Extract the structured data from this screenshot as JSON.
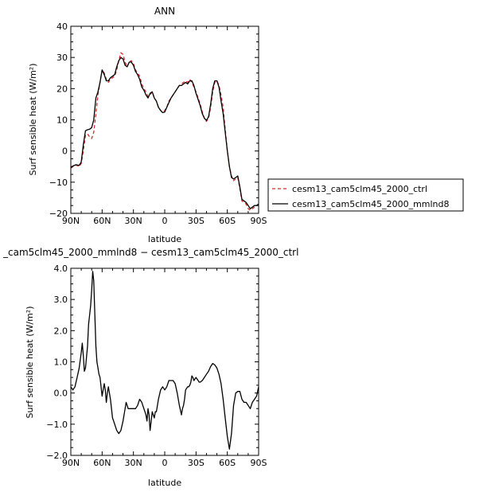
{
  "chart_data": [
    {
      "type": "line",
      "title": "ANN",
      "xlabel": "latitude",
      "ylabel": "Surf sensible heat (W/m²)",
      "xlim": [
        90,
        -90
      ],
      "ylim": [
        -20,
        40
      ],
      "xticks": [
        90,
        60,
        30,
        0,
        -30,
        -60,
        -90
      ],
      "xtick_labels": [
        "90N",
        "60N",
        "30N",
        "0",
        "30S",
        "60S",
        "90S"
      ],
      "yticks": [
        -20,
        -10,
        0,
        10,
        20,
        30,
        40
      ],
      "ytick_labels": [
        "−20",
        "−10",
        "0",
        "10",
        "20",
        "30",
        "40"
      ],
      "legend": {
        "placement": "right",
        "entries": [
          "cesm13_cam5clm45_2000_ctrl",
          "cesm13_cam5clm45_2000_mmlnd8"
        ]
      },
      "series": [
        {
          "name": "cesm13_cam5clm45_2000_ctrl",
          "color": "#d62728",
          "style": "dashed",
          "x": [
            90,
            88,
            85,
            82,
            80,
            78,
            76,
            74,
            72,
            70,
            68,
            66,
            64,
            62,
            60,
            58,
            56,
            54,
            52,
            50,
            48,
            46,
            44,
            42,
            40,
            38,
            36,
            34,
            32,
            30,
            28,
            26,
            24,
            22,
            20,
            18,
            16,
            14,
            12,
            10,
            8,
            6,
            4,
            2,
            0,
            -2,
            -4,
            -6,
            -8,
            -10,
            -12,
            -14,
            -16,
            -18,
            -20,
            -22,
            -24,
            -26,
            -28,
            -30,
            -32,
            -34,
            -36,
            -38,
            -40,
            -42,
            -44,
            -46,
            -48,
            -50,
            -52,
            -54,
            -56,
            -58,
            -60,
            -62,
            -64,
            -66,
            -68,
            -70,
            -72,
            -74,
            -76,
            -78,
            -80,
            -82,
            -84,
            -86,
            -88,
            -90
          ],
          "y": [
            -5.5,
            -5,
            -4.5,
            -5,
            -4,
            0,
            5,
            5.5,
            4.5,
            4,
            6,
            12,
            18,
            22,
            26,
            25,
            23,
            22,
            23,
            23.5,
            24,
            26,
            29,
            31.5,
            31,
            28.5,
            27,
            28.5,
            29,
            28,
            26,
            25,
            24,
            21.5,
            20,
            19,
            17.5,
            18,
            19,
            17,
            16,
            14,
            13,
            12.5,
            13,
            14,
            16,
            17,
            18,
            19,
            20,
            21,
            21.5,
            22,
            22.5,
            22,
            23,
            22,
            20.5,
            19,
            17,
            15,
            12.5,
            10.5,
            9.5,
            10.5,
            14,
            19,
            22,
            22.5,
            21,
            18,
            14,
            7,
            0,
            -5,
            -8,
            -9.5,
            -9,
            -8.5,
            -12,
            -16,
            -16.5,
            -17,
            -18.5,
            -19,
            -18.5,
            -18,
            -17.5,
            -17
          ]
        },
        {
          "name": "cesm13_cam5clm45_2000_mmlnd8",
          "color": "#000000",
          "style": "solid",
          "x": [
            90,
            88,
            85,
            82,
            80,
            78,
            76,
            74,
            72,
            70,
            68,
            66,
            64,
            62,
            60,
            58,
            56,
            54,
            52,
            50,
            48,
            46,
            44,
            42,
            40,
            38,
            36,
            34,
            32,
            30,
            28,
            26,
            24,
            22,
            20,
            18,
            16,
            14,
            12,
            10,
            8,
            6,
            4,
            2,
            0,
            -2,
            -4,
            -6,
            -8,
            -10,
            -12,
            -14,
            -16,
            -18,
            -20,
            -22,
            -24,
            -26,
            -28,
            -30,
            -32,
            -34,
            -36,
            -38,
            -40,
            -42,
            -44,
            -46,
            -48,
            -50,
            -52,
            -54,
            -56,
            -58,
            -60,
            -62,
            -64,
            -66,
            -68,
            -70,
            -72,
            -74,
            -76,
            -78,
            -80,
            -82,
            -84,
            -86,
            -88,
            -90
          ],
          "y": [
            -5.3,
            -4.8,
            -4.4,
            -4.6,
            -3.5,
            2,
            6.5,
            6.8,
            7,
            7.5,
            10,
            17,
            19,
            22,
            26,
            24.5,
            22.5,
            22.5,
            23.5,
            24,
            24.5,
            27,
            29,
            30,
            29.5,
            27.5,
            27,
            28.5,
            28.5,
            27.5,
            25.5,
            24.5,
            23,
            20.5,
            19.5,
            18,
            17,
            18.5,
            19,
            17,
            16,
            14,
            13,
            12.3,
            12.5,
            14,
            15.5,
            17,
            18,
            19,
            20,
            21,
            21,
            21.5,
            22,
            21.5,
            22.5,
            22.5,
            21,
            18.5,
            16.5,
            14.5,
            12,
            10.5,
            9.8,
            11,
            15,
            20,
            22.5,
            22.5,
            20.5,
            16,
            12,
            6,
            0,
            -5,
            -8.5,
            -9,
            -8.5,
            -8,
            -11.5,
            -15.5,
            -16,
            -16.5,
            -17.5,
            -18.5,
            -18,
            -17.5,
            -17.5,
            -17
          ]
        }
      ]
    },
    {
      "type": "line",
      "title": "_cam5clm45_2000_mmlnd8 − cesm13_cam5clm45_2000_ctrl",
      "xlabel": "latitude",
      "ylabel": "Surf sensible heat (W/m²)",
      "xlim": [
        90,
        -90
      ],
      "ylim": [
        -2,
        4
      ],
      "xticks": [
        90,
        60,
        30,
        0,
        -30,
        -60,
        -90
      ],
      "xtick_labels": [
        "90N",
        "60N",
        "30N",
        "0",
        "30S",
        "60S",
        "90S"
      ],
      "yticks": [
        -2,
        -1,
        0,
        1,
        2,
        3,
        4
      ],
      "ytick_labels": [
        "−2.0",
        "−1.0",
        "0.0",
        "1.0",
        "2.0",
        "3.0",
        "4.0"
      ],
      "series": [
        {
          "color": "#000000",
          "style": "solid",
          "x": [
            90,
            88,
            86,
            84,
            82,
            80,
            79,
            78,
            77,
            76,
            74,
            73,
            72,
            71,
            70,
            69,
            68,
            67,
            66,
            65,
            64,
            63,
            62,
            61,
            60,
            59,
            58,
            57,
            56,
            55,
            54,
            53,
            52,
            51,
            50,
            49,
            48,
            46,
            44,
            42,
            40,
            38,
            37,
            36,
            35,
            34,
            32,
            30,
            28,
            26,
            24,
            22,
            20,
            19,
            18,
            17,
            16,
            15,
            14,
            13,
            12,
            11,
            10,
            9,
            8,
            6,
            4,
            2,
            0,
            -2,
            -3,
            -4,
            -6,
            -8,
            -10,
            -12,
            -14,
            -16,
            -17,
            -18,
            -19,
            -20,
            -21,
            -22,
            -23,
            -24,
            -25,
            -26,
            -27,
            -28,
            -29,
            -30,
            -31,
            -32,
            -33,
            -34,
            -36,
            -38,
            -40,
            -42,
            -44,
            -46,
            -48,
            -50,
            -52,
            -54,
            -56,
            -58,
            -60,
            -62,
            -64,
            -66,
            -68,
            -70,
            -72,
            -74,
            -76,
            -78,
            -80,
            -82,
            -84,
            -86,
            -88,
            -90
          ],
          "y": [
            0.2,
            0.1,
            0.2,
            0.5,
            0.8,
            1.3,
            1.6,
            1.2,
            0.7,
            0.8,
            1.5,
            2.2,
            2.5,
            2.8,
            3.3,
            3.9,
            3.6,
            2.5,
            1.5,
            1.0,
            0.8,
            0.6,
            0.5,
            0.2,
            -0.1,
            0.1,
            0.3,
            0.1,
            -0.3,
            0.0,
            0.2,
            0.0,
            -0.2,
            -0.5,
            -0.8,
            -0.9,
            -1.0,
            -1.2,
            -1.3,
            -1.2,
            -0.9,
            -0.5,
            -0.3,
            -0.4,
            -0.5,
            -0.5,
            -0.5,
            -0.5,
            -0.5,
            -0.4,
            -0.2,
            -0.3,
            -0.5,
            -0.6,
            -0.7,
            -0.9,
            -0.5,
            -0.7,
            -1.2,
            -0.9,
            -0.6,
            -0.7,
            -0.8,
            -0.6,
            -0.6,
            -0.2,
            0.1,
            0.2,
            0.1,
            0.2,
            0.3,
            0.4,
            0.4,
            0.4,
            0.3,
            0.0,
            -0.4,
            -0.7,
            -0.5,
            -0.4,
            -0.2,
            0.1,
            0.15,
            0.2,
            0.2,
            0.25,
            0.35,
            0.55,
            0.5,
            0.4,
            0.45,
            0.5,
            0.45,
            0.4,
            0.35,
            0.35,
            0.4,
            0.5,
            0.6,
            0.7,
            0.85,
            0.95,
            0.9,
            0.8,
            0.6,
            0.3,
            -0.2,
            -0.8,
            -1.4,
            -1.8,
            -1.3,
            -0.4,
            0.0,
            0.05,
            0.05,
            -0.2,
            -0.3,
            -0.3,
            -0.4,
            -0.5,
            -0.3,
            -0.2,
            -0.1,
            0.2
          ]
        }
      ]
    }
  ]
}
